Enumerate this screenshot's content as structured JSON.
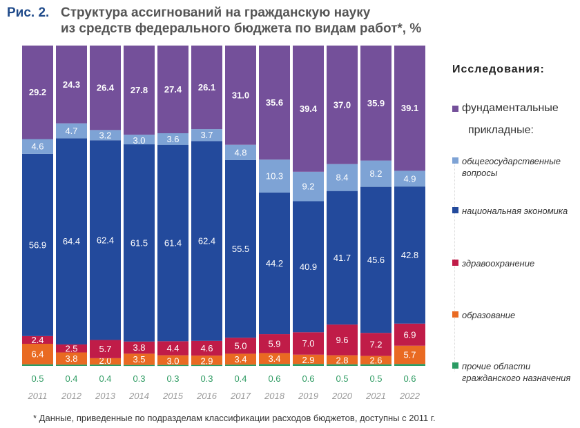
{
  "figure": {
    "label": "Рис. 2.",
    "title_line1": "Структура ассигнований на гражданскую науку",
    "title_line2": "из средств федерального бюджета по видам работ*, %"
  },
  "footnote": "* Данные, приведенные по подразделам классификации расходов бюджетов, доступны с 2011 г.",
  "legend": {
    "heading": "Исследования:",
    "applied_heading": "прикладные:",
    "items": [
      {
        "key": "fundamental",
        "label": "фундаментальные",
        "color": "#74509a"
      },
      {
        "key": "general",
        "label": "общегосударственные вопросы",
        "line1": "общегосударственные",
        "line2": "вопросы",
        "color": "#7ea3d5"
      },
      {
        "key": "economy",
        "label": "национальная экономика",
        "color": "#234a9c"
      },
      {
        "key": "health",
        "label": "здравоохранение",
        "color": "#c01c48"
      },
      {
        "key": "education",
        "label": "образование",
        "color": "#e96a22"
      },
      {
        "key": "other",
        "label": "прочие области гражданского назначения",
        "line1": "прочие области",
        "line2": "гражданского назначения",
        "color": "#2a9b63"
      }
    ]
  },
  "chart_data": {
    "type": "bar",
    "stacked": true,
    "title": "Структура ассигнований на гражданскую науку из средств федерального бюджета по видам работ*, %",
    "xlabel": "",
    "ylabel": "%",
    "ylim": [
      0,
      100
    ],
    "grid": false,
    "legend_position": "right",
    "categories": [
      "2011",
      "2012",
      "2013",
      "2014",
      "2015",
      "2016",
      "2017",
      "2018",
      "2019",
      "2020",
      "2021",
      "2022"
    ],
    "series": [
      {
        "name": "прочие области гражданского назначения",
        "color": "#2a9b63",
        "label_color": "#2e9b62",
        "values": [
          0.5,
          0.4,
          0.4,
          0.3,
          0.3,
          0.3,
          0.4,
          0.6,
          0.6,
          0.5,
          0.5,
          0.6
        ]
      },
      {
        "name": "образование",
        "color": "#e96a22",
        "values": [
          6.4,
          3.8,
          2.0,
          3.5,
          3.0,
          2.9,
          3.4,
          3.4,
          2.9,
          2.8,
          2.6,
          5.7
        ]
      },
      {
        "name": "здравоохранение",
        "color": "#c01c48",
        "values": [
          2.4,
          2.5,
          5.7,
          3.8,
          4.4,
          4.6,
          5.0,
          5.9,
          7.0,
          9.6,
          7.2,
          6.9
        ]
      },
      {
        "name": "национальная экономика",
        "color": "#234a9c",
        "values": [
          56.9,
          64.4,
          62.4,
          61.5,
          61.4,
          62.4,
          55.5,
          44.2,
          40.9,
          41.7,
          45.6,
          42.8
        ]
      },
      {
        "name": "общегосударственные вопросы",
        "color": "#7ea3d5",
        "values": [
          4.6,
          4.7,
          3.2,
          3.0,
          3.6,
          3.7,
          4.8,
          10.3,
          9.2,
          8.4,
          8.2,
          4.9
        ]
      },
      {
        "name": "фундаментальные",
        "color": "#74509a",
        "values": [
          29.2,
          24.3,
          26.4,
          27.8,
          27.4,
          26.1,
          31.0,
          35.6,
          39.4,
          37.0,
          35.9,
          39.1
        ]
      }
    ]
  }
}
